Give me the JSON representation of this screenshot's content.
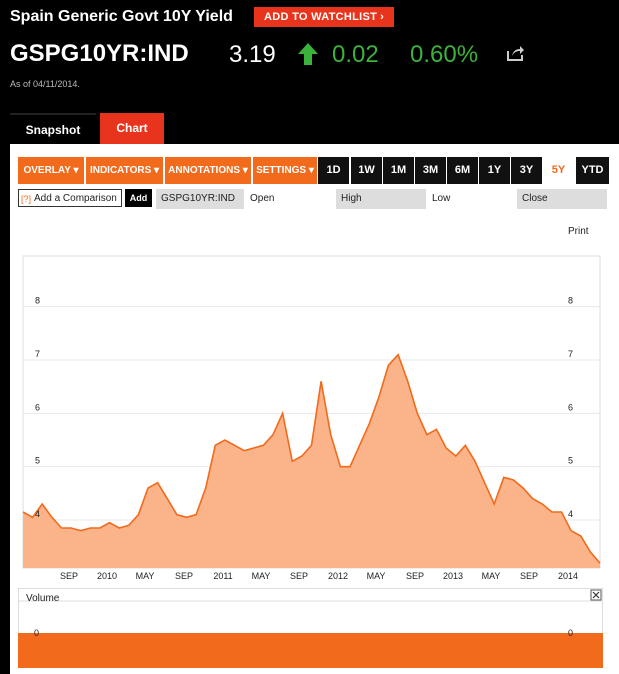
{
  "header": {
    "title": "Spain Generic Govt 10Y Yield",
    "watchlist_label": "ADD TO WATCHLIST",
    "ticker": "GSPG10YR:IND",
    "price": "3.19",
    "change": "0.02",
    "change_pct": "0.60%",
    "as_of": "As of 04/11/2014.",
    "up_color": "#3bb23b",
    "up_icon": "up-arrow-icon",
    "share_icon": "share-icon"
  },
  "tabs": [
    {
      "label": "Snapshot",
      "active": false
    },
    {
      "label": "Chart",
      "active": true
    }
  ],
  "toolbar": {
    "menus": [
      "OVERLAY",
      "INDICATORS",
      "ANNOTATIONS",
      "SETTINGS"
    ],
    "ranges": [
      "1D",
      "1W",
      "1M",
      "3M",
      "6M",
      "1Y",
      "3Y",
      "5Y",
      "YTD"
    ],
    "selected_range": "5Y",
    "accent": "#f26a1b"
  },
  "info_row": {
    "compare_icon": "[?]",
    "compare_placeholder": "Add a Comparison",
    "add_label": "Add",
    "symbol": "GSPG10YR:IND",
    "open_label": "Open",
    "high_label": "High",
    "low_label": "Low",
    "close_label": "Close"
  },
  "chart_data": {
    "type": "area",
    "print_label": "Print",
    "ylim": [
      3.1,
      8.95
    ],
    "y_ticks": [
      "4",
      "5",
      "6",
      "7",
      "8"
    ],
    "x_ticks": [
      "SEP",
      "2010",
      "MAY",
      "SEP",
      "2011",
      "MAY",
      "SEP",
      "2012",
      "MAY",
      "SEP",
      "2013",
      "MAY",
      "SEP",
      "2014"
    ],
    "x": [
      "2009-04",
      "2009-05",
      "2009-06",
      "2009-07",
      "2009-08",
      "2009-09",
      "2009-10",
      "2009-11",
      "2009-12",
      "2010-01",
      "2010-02",
      "2010-03",
      "2010-04",
      "2010-05",
      "2010-06",
      "2010-07",
      "2010-08",
      "2010-09",
      "2010-10",
      "2010-11",
      "2010-12",
      "2011-01",
      "2011-02",
      "2011-03",
      "2011-04",
      "2011-05",
      "2011-06",
      "2011-07",
      "2011-08",
      "2011-09",
      "2011-10",
      "2011-11",
      "2011-12",
      "2012-01",
      "2012-02",
      "2012-03",
      "2012-04",
      "2012-05",
      "2012-06",
      "2012-07",
      "2012-08",
      "2012-09",
      "2012-10",
      "2012-11",
      "2012-12",
      "2013-01",
      "2013-02",
      "2013-03",
      "2013-04",
      "2013-05",
      "2013-06",
      "2013-07",
      "2013-08",
      "2013-09",
      "2013-10",
      "2013-11",
      "2013-12",
      "2014-01",
      "2014-02",
      "2014-03",
      "2014-04"
    ],
    "values": [
      4.15,
      4.05,
      4.3,
      4.05,
      3.85,
      3.85,
      3.8,
      3.85,
      3.85,
      3.95,
      3.85,
      3.9,
      4.1,
      4.6,
      4.7,
      4.4,
      4.1,
      4.05,
      4.1,
      4.6,
      5.4,
      5.5,
      5.4,
      5.3,
      5.35,
      5.4,
      5.6,
      6.0,
      5.1,
      5.2,
      5.4,
      6.6,
      5.6,
      5.0,
      5.0,
      5.4,
      5.8,
      6.3,
      6.9,
      7.1,
      6.6,
      6.0,
      5.6,
      5.7,
      5.35,
      5.2,
      5.4,
      5.1,
      4.7,
      4.3,
      4.8,
      4.75,
      4.6,
      4.4,
      4.3,
      4.15,
      4.15,
      3.8,
      3.7,
      3.4,
      3.19
    ],
    "volume_label": "Volume",
    "volume_tick": "0",
    "line_color": "#f26a1b",
    "fill_color": "#fbb38a"
  }
}
